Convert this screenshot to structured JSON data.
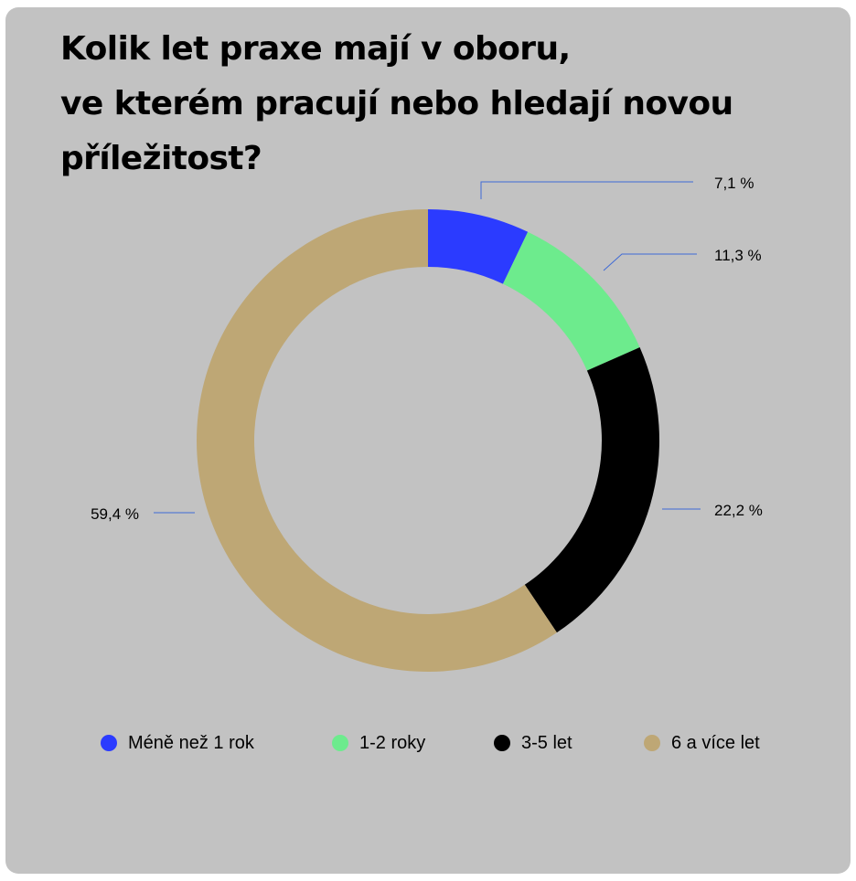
{
  "chart_data": {
    "type": "pie",
    "variant": "donut",
    "title_lines": [
      "Kolik let praxe mají v oboru,",
      "ve kterém pracují nebo hledají novou",
      "příležitost?"
    ],
    "categories": [
      "Méně než 1 rok",
      "1-2 roky",
      "3-5 let",
      "6 a více let"
    ],
    "values": [
      7.1,
      11.3,
      22.2,
      59.4
    ],
    "value_labels": [
      "7,1 %",
      "11,3 %",
      "22,2 %",
      "59,4 %"
    ],
    "colors": [
      "#2b3bff",
      "#6deb8d",
      "#000000",
      "#bea775"
    ],
    "leader_line_color": "#3f6ad6",
    "legend_position": "bottom",
    "background_color": "#c2c2c2"
  }
}
